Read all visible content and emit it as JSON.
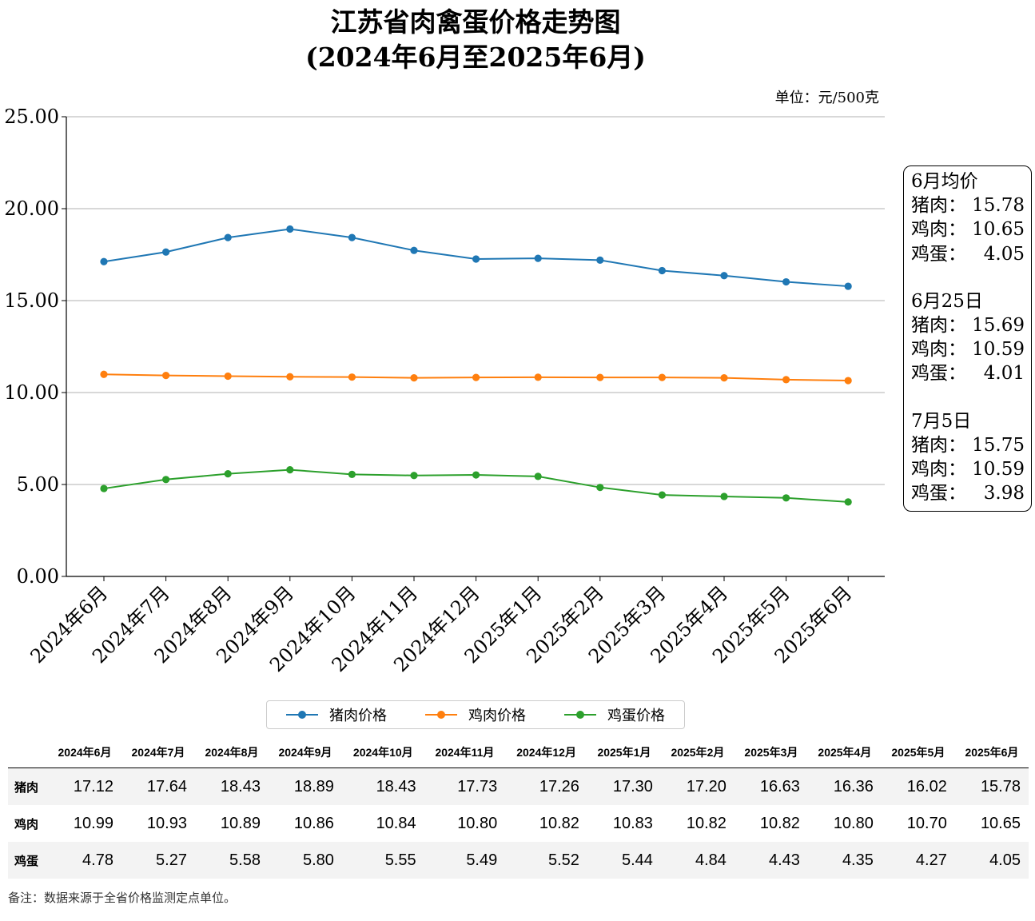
{
  "chart_data": {
    "type": "line",
    "title": [
      "江苏省肉禽蛋价格走势图",
      "(2024年6月至2025年6月)"
    ],
    "unit_label": "单位：元/500克",
    "categories": [
      "2024年6月",
      "2024年7月",
      "2024年8月",
      "2024年9月",
      "2024年10月",
      "2024年11月",
      "2024年12月",
      "2025年1月",
      "2025年2月",
      "2025年3月",
      "2025年4月",
      "2025年5月",
      "2025年6月"
    ],
    "ylim": [
      0,
      25
    ],
    "yticks": [
      "0.00",
      "5.00",
      "10.00",
      "15.00",
      "20.00",
      "25.00"
    ],
    "grid": "horizontal",
    "series": [
      {
        "name": "猪肉价格",
        "color": "#1f77b4",
        "values": [
          17.12,
          17.64,
          18.43,
          18.89,
          18.43,
          17.73,
          17.26,
          17.3,
          17.2,
          16.63,
          16.36,
          16.02,
          15.78
        ]
      },
      {
        "name": "鸡肉价格",
        "color": "#ff7f0e",
        "values": [
          10.99,
          10.93,
          10.89,
          10.86,
          10.84,
          10.8,
          10.82,
          10.83,
          10.82,
          10.82,
          10.8,
          10.7,
          10.65
        ]
      },
      {
        "name": "鸡蛋价格",
        "color": "#2ca02c",
        "values": [
          4.78,
          5.27,
          5.58,
          5.8,
          5.55,
          5.49,
          5.52,
          5.44,
          4.84,
          4.43,
          4.35,
          4.27,
          4.05
        ]
      }
    ],
    "legend_position": "bottom-center"
  },
  "infobox": [
    {
      "title": "6月均价",
      "rows": [
        {
          "label": "猪肉：",
          "value": "15.78"
        },
        {
          "label": "鸡肉：",
          "value": "10.65"
        },
        {
          "label": "鸡蛋：",
          "value": "4.05"
        }
      ]
    },
    {
      "title": "6月25日",
      "rows": [
        {
          "label": "猪肉：",
          "value": "15.69"
        },
        {
          "label": "鸡肉：",
          "value": "10.59"
        },
        {
          "label": "鸡蛋：",
          "value": "4.01"
        }
      ]
    },
    {
      "title": "7月5日",
      "rows": [
        {
          "label": "猪肉：",
          "value": "15.75"
        },
        {
          "label": "鸡肉：",
          "value": "10.59"
        },
        {
          "label": "鸡蛋：",
          "value": "3.98"
        }
      ]
    }
  ],
  "table": {
    "headers": [
      "",
      "2024年6月",
      "2024年7月",
      "2024年8月",
      "2024年9月",
      "2024年10月",
      "2024年11月",
      "2024年12月",
      "2025年1月",
      "2025年2月",
      "2025年3月",
      "2025年4月",
      "2025年5月",
      "2025年6月"
    ],
    "rows": [
      {
        "label": "猪肉",
        "values": [
          "17.12",
          "17.64",
          "18.43",
          "18.89",
          "18.43",
          "17.73",
          "17.26",
          "17.30",
          "17.20",
          "16.63",
          "16.36",
          "16.02",
          "15.78"
        ]
      },
      {
        "label": "鸡肉",
        "values": [
          "10.99",
          "10.93",
          "10.89",
          "10.86",
          "10.84",
          "10.80",
          "10.82",
          "10.83",
          "10.82",
          "10.82",
          "10.80",
          "10.70",
          "10.65"
        ]
      },
      {
        "label": "鸡蛋",
        "values": [
          "4.78",
          "5.27",
          "5.58",
          "5.80",
          "5.55",
          "5.49",
          "5.52",
          "5.44",
          "4.84",
          "4.43",
          "4.35",
          "4.27",
          "4.05"
        ]
      }
    ]
  },
  "note": "备注：数据来源于全省价格监测定点单位。"
}
